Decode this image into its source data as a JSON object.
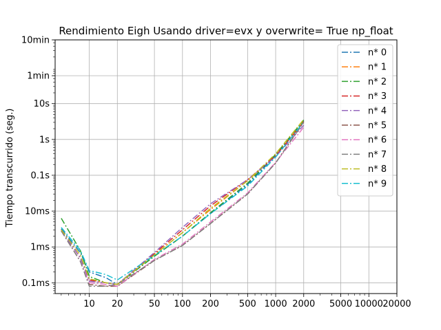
{
  "chart_data": {
    "type": "line",
    "title": "Rendimiento   Eigh Usando driver=evx y overwrite= True np_float",
    "xlabel": "",
    "ylabel": "Tiempo transcurrido (seg.)",
    "x_scale": "log",
    "y_scale": "log",
    "xlim": [
      4.3,
      20000
    ],
    "ylim": [
      5e-05,
      600
    ],
    "grid": true,
    "legend_position": "top-right",
    "line_style": "dash-dot",
    "x_ticks": [
      {
        "value": 10,
        "label": "10"
      },
      {
        "value": 20,
        "label": "20"
      },
      {
        "value": 50,
        "label": "50"
      },
      {
        "value": 100,
        "label": "100"
      },
      {
        "value": 200,
        "label": "200"
      },
      {
        "value": 500,
        "label": "500"
      },
      {
        "value": 1000,
        "label": "1000"
      },
      {
        "value": 2000,
        "label": "2000"
      },
      {
        "value": 5000,
        "label": "5000"
      },
      {
        "value": 10000,
        "label": "10000"
      },
      {
        "value": 20000,
        "label": "20000"
      }
    ],
    "y_ticks": [
      {
        "value": 0.0001,
        "label": "0.1ms"
      },
      {
        "value": 0.001,
        "label": "1ms"
      },
      {
        "value": 0.01,
        "label": "10ms"
      },
      {
        "value": 0.1,
        "label": "0.1s"
      },
      {
        "value": 1,
        "label": "1s"
      },
      {
        "value": 10,
        "label": "10s"
      },
      {
        "value": 60,
        "label": "1min"
      },
      {
        "value": 600,
        "label": "10min"
      }
    ],
    "x": [
      5,
      8,
      10,
      15,
      20,
      50,
      100,
      200,
      500,
      1000,
      2000
    ],
    "series": [
      {
        "name": "n* 0",
        "color": "#1f77b4",
        "values": [
          0.0032,
          0.0007,
          0.0002,
          0.00014,
          9e-05,
          0.00055,
          0.002,
          0.0085,
          0.055,
          0.35,
          3.3
        ]
      },
      {
        "name": "n* 1",
        "color": "#ff7f0e",
        "values": [
          0.003,
          0.0005,
          0.00012,
          0.0001,
          9e-05,
          0.0006,
          0.0025,
          0.011,
          0.07,
          0.35,
          3.2
        ]
      },
      {
        "name": "n* 2",
        "color": "#2ca02c",
        "values": [
          0.0063,
          0.0008,
          0.00015,
          0.0001,
          9e-05,
          0.00055,
          0.002,
          0.009,
          0.06,
          0.38,
          3.5
        ]
      },
      {
        "name": "n* 3",
        "color": "#d62728",
        "values": [
          0.003,
          0.0005,
          0.00012,
          0.0001,
          9e-05,
          0.00065,
          0.003,
          0.014,
          0.075,
          0.35,
          3.0
        ]
      },
      {
        "name": "n* 4",
        "color": "#9467bd",
        "values": [
          0.003,
          0.0005,
          0.00011,
          0.0001,
          9e-05,
          0.0007,
          0.0035,
          0.016,
          0.075,
          0.33,
          2.5
        ]
      },
      {
        "name": "n* 5",
        "color": "#8c564b",
        "values": [
          0.0028,
          0.0004,
          9e-05,
          8e-05,
          8e-05,
          0.00042,
          0.0011,
          0.0045,
          0.03,
          0.22,
          3.2
        ]
      },
      {
        "name": "n* 6",
        "color": "#e377c2",
        "values": [
          0.0028,
          0.0004,
          0.0001,
          9e-05,
          8e-05,
          0.00045,
          0.0012,
          0.005,
          0.032,
          0.23,
          2.2
        ]
      },
      {
        "name": "n* 7",
        "color": "#7f7f7f",
        "values": [
          0.0028,
          0.0004,
          8e-05,
          8e-05,
          9e-05,
          0.00042,
          0.0011,
          0.0045,
          0.03,
          0.22,
          3.0
        ]
      },
      {
        "name": "n* 8",
        "color": "#bcbd22",
        "values": [
          0.003,
          0.0006,
          0.00013,
          0.0001,
          9e-05,
          0.0006,
          0.0025,
          0.012,
          0.07,
          0.4,
          3.6
        ]
      },
      {
        "name": "n* 9",
        "color": "#17becf",
        "values": [
          0.0035,
          0.0008,
          0.00022,
          0.00017,
          0.00012,
          0.00058,
          0.002,
          0.0085,
          0.05,
          0.32,
          3.1
        ]
      }
    ]
  }
}
